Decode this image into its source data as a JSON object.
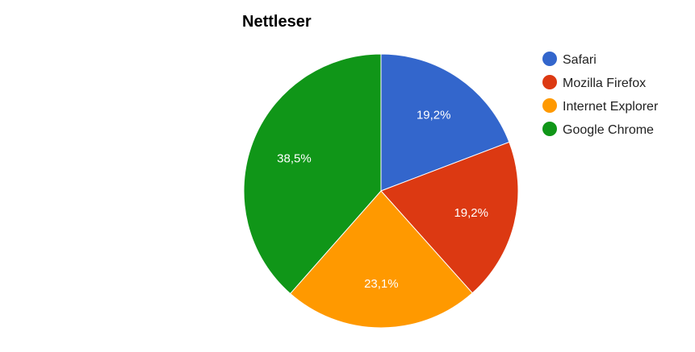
{
  "chart_data": {
    "type": "pie",
    "title": "Nettleser",
    "categories": [
      "Safari",
      "Mozilla Firefox",
      "Internet Explorer",
      "Google Chrome"
    ],
    "values": [
      19.2,
      19.2,
      23.1,
      38.5
    ],
    "labels": [
      "19,2%",
      "19,2%",
      "23,1%",
      "38,5%"
    ],
    "colors": [
      "#3366cc",
      "#dc3912",
      "#ff9900",
      "#109618"
    ],
    "legend": "right",
    "start": "top",
    "direction": "clockwise"
  }
}
